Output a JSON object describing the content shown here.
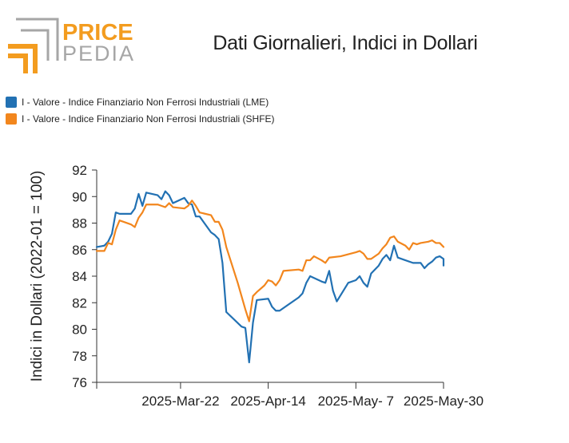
{
  "header": {
    "logo_text_top": "PRICE",
    "logo_text_bottom": "PEDIA",
    "title": "Dati Giornalieri, Indici in Dollari"
  },
  "colors": {
    "lme": "#2271b3",
    "shfe": "#f2861d",
    "logo_orange": "#f39c1f",
    "logo_gray": "#a6a6a6"
  },
  "chart_data": {
    "type": "line",
    "title": "Dati Giornalieri, Indici in Dollari",
    "xlabel": "",
    "ylabel": "Indici in Dollari (2022-01 = 100)",
    "ylim": [
      76,
      92
    ],
    "yticks": [
      76,
      78,
      80,
      82,
      84,
      86,
      88,
      90,
      92
    ],
    "xlim": [
      "2025-02-28",
      "2025-05-30"
    ],
    "xticks": [
      {
        "date": "2025-03-22",
        "label": "2025-Mar-22"
      },
      {
        "date": "2025-04-14",
        "label": "2025-Apr-14"
      },
      {
        "date": "2025-05-07",
        "label": "2025-May- 7"
      },
      {
        "date": "2025-05-30",
        "label": "2025-May-30"
      }
    ],
    "grid": false,
    "legend_position": "top-left",
    "series": [
      {
        "name": "I - Valore - Indice Finanziario Non Ferrosi Industriali (LME)",
        "color": "#2271b3",
        "points": [
          [
            "2025-02-28",
            86.2
          ],
          [
            "2025-03-02",
            86.3
          ],
          [
            "2025-03-03",
            86.6
          ],
          [
            "2025-03-04",
            87.2
          ],
          [
            "2025-03-05",
            88.8
          ],
          [
            "2025-03-06",
            88.7
          ],
          [
            "2025-03-07",
            88.7
          ],
          [
            "2025-03-09",
            88.7
          ],
          [
            "2025-03-10",
            89.1
          ],
          [
            "2025-03-11",
            90.2
          ],
          [
            "2025-03-12",
            89.3
          ],
          [
            "2025-03-13",
            90.3
          ],
          [
            "2025-03-16",
            90.1
          ],
          [
            "2025-03-17",
            89.8
          ],
          [
            "2025-03-18",
            90.4
          ],
          [
            "2025-03-19",
            90.1
          ],
          [
            "2025-03-20",
            89.5
          ],
          [
            "2025-03-23",
            89.9
          ],
          [
            "2025-03-24",
            89.5
          ],
          [
            "2025-03-25",
            89.4
          ],
          [
            "2025-03-26",
            88.5
          ],
          [
            "2025-03-27",
            88.5
          ],
          [
            "2025-03-30",
            87.3
          ],
          [
            "2025-03-31",
            87.1
          ],
          [
            "2025-04-01",
            86.8
          ],
          [
            "2025-04-02",
            85.0
          ],
          [
            "2025-04-03",
            81.3
          ],
          [
            "2025-04-07",
            80.2
          ],
          [
            "2025-04-08",
            80.1
          ],
          [
            "2025-04-09",
            77.5
          ],
          [
            "2025-04-10",
            80.5
          ],
          [
            "2025-04-11",
            82.2
          ],
          [
            "2025-04-14",
            82.3
          ],
          [
            "2025-04-15",
            81.7
          ],
          [
            "2025-04-16",
            81.4
          ],
          [
            "2025-04-17",
            81.4
          ],
          [
            "2025-04-22",
            82.4
          ],
          [
            "2025-04-23",
            82.7
          ],
          [
            "2025-04-24",
            83.5
          ],
          [
            "2025-04-25",
            84.0
          ],
          [
            "2025-04-28",
            83.6
          ],
          [
            "2025-04-29",
            83.5
          ],
          [
            "2025-04-30",
            84.4
          ],
          [
            "2025-05-01",
            82.9
          ],
          [
            "2025-05-02",
            82.1
          ],
          [
            "2025-05-05",
            83.5
          ],
          [
            "2025-05-07",
            83.7
          ],
          [
            "2025-05-08",
            84.0
          ],
          [
            "2025-05-09",
            83.5
          ],
          [
            "2025-05-10",
            83.2
          ],
          [
            "2025-05-11",
            84.2
          ],
          [
            "2025-05-13",
            84.8
          ],
          [
            "2025-05-14",
            85.3
          ],
          [
            "2025-05-15",
            85.6
          ],
          [
            "2025-05-16",
            85.2
          ],
          [
            "2025-05-17",
            86.3
          ],
          [
            "2025-05-18",
            85.4
          ],
          [
            "2025-05-20",
            85.2
          ],
          [
            "2025-05-22",
            85.0
          ],
          [
            "2025-05-24",
            85.0
          ],
          [
            "2025-05-25",
            84.6
          ],
          [
            "2025-05-26",
            84.9
          ],
          [
            "2025-05-27",
            85.1
          ],
          [
            "2025-05-28",
            85.4
          ],
          [
            "2025-05-29",
            85.5
          ],
          [
            "2025-05-30",
            85.3
          ],
          [
            "2025-05-30",
            84.8
          ]
        ]
      },
      {
        "name": "I - Valore - Indice Finanziario Non Ferrosi Industriali (SHFE)",
        "color": "#f2861d",
        "points": [
          [
            "2025-02-28",
            85.9
          ],
          [
            "2025-03-02",
            85.9
          ],
          [
            "2025-03-03",
            86.5
          ],
          [
            "2025-03-04",
            86.4
          ],
          [
            "2025-03-05",
            87.5
          ],
          [
            "2025-03-06",
            88.2
          ],
          [
            "2025-03-07",
            88.1
          ],
          [
            "2025-03-09",
            87.9
          ],
          [
            "2025-03-10",
            87.7
          ],
          [
            "2025-03-11",
            88.4
          ],
          [
            "2025-03-12",
            88.8
          ],
          [
            "2025-03-13",
            89.4
          ],
          [
            "2025-03-16",
            89.4
          ],
          [
            "2025-03-17",
            89.3
          ],
          [
            "2025-03-18",
            89.2
          ],
          [
            "2025-03-19",
            89.5
          ],
          [
            "2025-03-20",
            89.2
          ],
          [
            "2025-03-23",
            89.1
          ],
          [
            "2025-03-24",
            89.3
          ],
          [
            "2025-03-25",
            89.7
          ],
          [
            "2025-03-26",
            89.3
          ],
          [
            "2025-03-27",
            88.8
          ],
          [
            "2025-03-30",
            88.6
          ],
          [
            "2025-03-31",
            88.1
          ],
          [
            "2025-04-01",
            88.1
          ],
          [
            "2025-04-02",
            87.5
          ],
          [
            "2025-04-03",
            86.2
          ],
          [
            "2025-04-06",
            83.5
          ],
          [
            "2025-04-07",
            82.5
          ],
          [
            "2025-04-08",
            81.5
          ],
          [
            "2025-04-09",
            80.6
          ],
          [
            "2025-04-10",
            82.5
          ],
          [
            "2025-04-11",
            82.8
          ],
          [
            "2025-04-13",
            83.3
          ],
          [
            "2025-04-14",
            83.7
          ],
          [
            "2025-04-15",
            83.6
          ],
          [
            "2025-04-16",
            83.3
          ],
          [
            "2025-04-17",
            83.7
          ],
          [
            "2025-04-18",
            84.4
          ],
          [
            "2025-04-22",
            84.5
          ],
          [
            "2025-04-23",
            84.4
          ],
          [
            "2025-04-24",
            85.2
          ],
          [
            "2025-04-25",
            85.2
          ],
          [
            "2025-04-26",
            85.5
          ],
          [
            "2025-04-28",
            85.2
          ],
          [
            "2025-04-29",
            85.0
          ],
          [
            "2025-04-30",
            85.4
          ],
          [
            "2025-05-03",
            85.5
          ],
          [
            "2025-05-07",
            85.8
          ],
          [
            "2025-05-08",
            85.9
          ],
          [
            "2025-05-09",
            85.7
          ],
          [
            "2025-05-10",
            85.3
          ],
          [
            "2025-05-11",
            85.3
          ],
          [
            "2025-05-13",
            85.7
          ],
          [
            "2025-05-14",
            86.1
          ],
          [
            "2025-05-15",
            86.4
          ],
          [
            "2025-05-16",
            86.9
          ],
          [
            "2025-05-17",
            87.0
          ],
          [
            "2025-05-18",
            86.6
          ],
          [
            "2025-05-20",
            86.3
          ],
          [
            "2025-05-21",
            86.0
          ],
          [
            "2025-05-22",
            86.5
          ],
          [
            "2025-05-23",
            86.4
          ],
          [
            "2025-05-24",
            86.5
          ],
          [
            "2025-05-26",
            86.6
          ],
          [
            "2025-05-27",
            86.7
          ],
          [
            "2025-05-28",
            86.5
          ],
          [
            "2025-05-29",
            86.5
          ],
          [
            "2025-05-30",
            86.2
          ]
        ]
      }
    ]
  }
}
